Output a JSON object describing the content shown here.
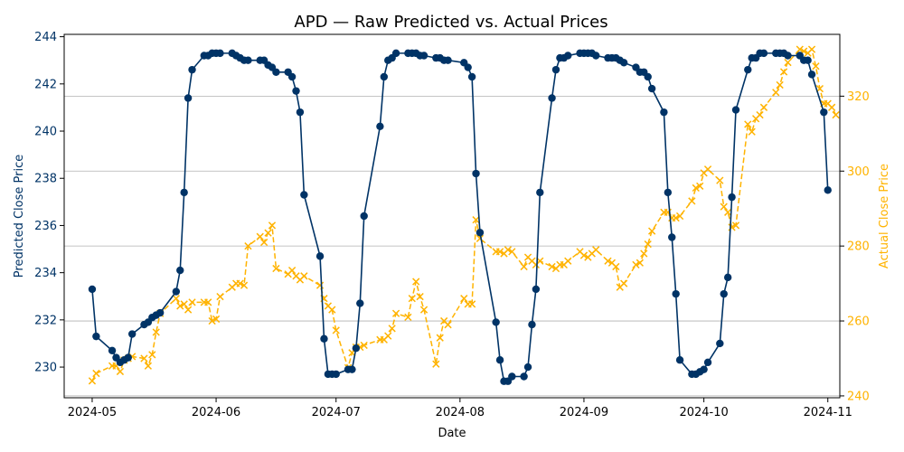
{
  "chart_data": {
    "type": "line",
    "title": "APD — Raw Predicted vs. Actual Prices",
    "xlabel": "Date",
    "ylabel_left": "Predicted Close Price",
    "ylabel_right": "Actual Close Price",
    "x_ticks": [
      "2024-05",
      "2024-06",
      "2024-07",
      "2024-08",
      "2024-09",
      "2024-10",
      "2024-11"
    ],
    "y_left_ticks": [
      "230",
      "232",
      "234",
      "236",
      "238",
      "240",
      "242",
      "244"
    ],
    "y_right_ticks": [
      "240",
      "260",
      "280",
      "300",
      "320"
    ],
    "x_range": [
      "2024-04-24",
      "2024-11-04"
    ],
    "ylim_left": [
      228.7,
      244.1
    ],
    "ylim_right": [
      239.5,
      336.5
    ],
    "grid": "horizontal (right axis)",
    "colors": {
      "predicted": "#003366",
      "actual": "#FFB300"
    },
    "series": [
      {
        "role": "predicted",
        "axis": "left",
        "marker": "circle",
        "line_style": "solid",
        "points": [
          [
            "2024-05-01",
            233.3
          ],
          [
            "2024-05-02",
            231.3
          ],
          [
            "2024-05-06",
            230.7
          ],
          [
            "2024-05-07",
            230.4
          ],
          [
            "2024-05-08",
            230.2
          ],
          [
            "2024-05-09",
            230.3
          ],
          [
            "2024-05-10",
            230.4
          ],
          [
            "2024-05-11",
            231.4
          ],
          [
            "2024-05-14",
            231.8
          ],
          [
            "2024-05-15",
            231.9
          ],
          [
            "2024-05-16",
            232.1
          ],
          [
            "2024-05-17",
            232.2
          ],
          [
            "2024-05-18",
            232.3
          ],
          [
            "2024-05-22",
            233.2
          ],
          [
            "2024-05-23",
            234.1
          ],
          [
            "2024-05-24",
            237.4
          ],
          [
            "2024-05-25",
            241.4
          ],
          [
            "2024-05-26",
            242.6
          ],
          [
            "2024-05-29",
            243.2
          ],
          [
            "2024-05-30",
            243.2
          ],
          [
            "2024-05-31",
            243.3
          ],
          [
            "2024-06-01",
            243.3
          ],
          [
            "2024-06-02",
            243.3
          ],
          [
            "2024-06-05",
            243.3
          ],
          [
            "2024-06-06",
            243.2
          ],
          [
            "2024-06-07",
            243.1
          ],
          [
            "2024-06-08",
            243.0
          ],
          [
            "2024-06-09",
            243.0
          ],
          [
            "2024-06-12",
            243.0
          ],
          [
            "2024-06-13",
            243.0
          ],
          [
            "2024-06-14",
            242.8
          ],
          [
            "2024-06-15",
            242.7
          ],
          [
            "2024-06-16",
            242.5
          ],
          [
            "2024-06-19",
            242.5
          ],
          [
            "2024-06-20",
            242.3
          ],
          [
            "2024-06-21",
            241.7
          ],
          [
            "2024-06-22",
            240.8
          ],
          [
            "2024-06-23",
            237.3
          ],
          [
            "2024-06-27",
            234.7
          ],
          [
            "2024-06-28",
            231.2
          ],
          [
            "2024-06-29",
            229.7
          ],
          [
            "2024-06-30",
            229.7
          ],
          [
            "2024-07-01",
            229.7
          ],
          [
            "2024-07-04",
            229.9
          ],
          [
            "2024-07-05",
            229.9
          ],
          [
            "2024-07-06",
            230.8
          ],
          [
            "2024-07-07",
            232.7
          ],
          [
            "2024-07-08",
            236.4
          ],
          [
            "2024-07-12",
            240.2
          ],
          [
            "2024-07-13",
            242.3
          ],
          [
            "2024-07-14",
            243.0
          ],
          [
            "2024-07-15",
            243.1
          ],
          [
            "2024-07-16",
            243.3
          ],
          [
            "2024-07-19",
            243.3
          ],
          [
            "2024-07-20",
            243.3
          ],
          [
            "2024-07-21",
            243.3
          ],
          [
            "2024-07-22",
            243.2
          ],
          [
            "2024-07-23",
            243.2
          ],
          [
            "2024-07-26",
            243.1
          ],
          [
            "2024-07-27",
            243.1
          ],
          [
            "2024-07-28",
            243.0
          ],
          [
            "2024-07-29",
            243.0
          ],
          [
            "2024-08-02",
            242.9
          ],
          [
            "2024-08-03",
            242.7
          ],
          [
            "2024-08-04",
            242.3
          ],
          [
            "2024-08-05",
            238.2
          ],
          [
            "2024-08-06",
            235.7
          ],
          [
            "2024-08-10",
            231.9
          ],
          [
            "2024-08-11",
            230.3
          ],
          [
            "2024-08-12",
            229.4
          ],
          [
            "2024-08-13",
            229.4
          ],
          [
            "2024-08-14",
            229.6
          ],
          [
            "2024-08-17",
            229.6
          ],
          [
            "2024-08-18",
            230.0
          ],
          [
            "2024-08-19",
            231.8
          ],
          [
            "2024-08-20",
            233.3
          ],
          [
            "2024-08-21",
            237.4
          ],
          [
            "2024-08-24",
            241.4
          ],
          [
            "2024-08-25",
            242.6
          ],
          [
            "2024-08-26",
            243.1
          ],
          [
            "2024-08-27",
            243.1
          ],
          [
            "2024-08-28",
            243.2
          ],
          [
            "2024-08-31",
            243.3
          ],
          [
            "2024-09-01",
            243.3
          ],
          [
            "2024-09-02",
            243.3
          ],
          [
            "2024-09-03",
            243.3
          ],
          [
            "2024-09-04",
            243.2
          ],
          [
            "2024-09-07",
            243.1
          ],
          [
            "2024-09-08",
            243.1
          ],
          [
            "2024-09-09",
            243.1
          ],
          [
            "2024-09-10",
            243.0
          ],
          [
            "2024-09-11",
            242.9
          ],
          [
            "2024-09-14",
            242.7
          ],
          [
            "2024-09-15",
            242.5
          ],
          [
            "2024-09-16",
            242.5
          ],
          [
            "2024-09-17",
            242.3
          ],
          [
            "2024-09-18",
            241.8
          ],
          [
            "2024-09-21",
            240.8
          ],
          [
            "2024-09-22",
            237.4
          ],
          [
            "2024-09-23",
            235.5
          ],
          [
            "2024-09-24",
            233.1
          ],
          [
            "2024-09-25",
            230.3
          ],
          [
            "2024-09-28",
            229.7
          ],
          [
            "2024-09-29",
            229.7
          ],
          [
            "2024-09-30",
            229.8
          ],
          [
            "2024-10-01",
            229.9
          ],
          [
            "2024-10-02",
            230.2
          ],
          [
            "2024-10-05",
            231.0
          ],
          [
            "2024-10-06",
            233.1
          ],
          [
            "2024-10-07",
            233.8
          ],
          [
            "2024-10-08",
            237.2
          ],
          [
            "2024-10-09",
            240.9
          ],
          [
            "2024-10-12",
            242.6
          ],
          [
            "2024-10-13",
            243.1
          ],
          [
            "2024-10-14",
            243.1
          ],
          [
            "2024-10-15",
            243.3
          ],
          [
            "2024-10-16",
            243.3
          ],
          [
            "2024-10-19",
            243.3
          ],
          [
            "2024-10-20",
            243.3
          ],
          [
            "2024-10-21",
            243.3
          ],
          [
            "2024-10-22",
            243.2
          ],
          [
            "2024-10-25",
            243.2
          ],
          [
            "2024-10-26",
            243.0
          ],
          [
            "2024-10-27",
            243.0
          ],
          [
            "2024-10-28",
            242.4
          ],
          [
            "2024-10-31",
            240.8
          ],
          [
            "2024-11-01",
            237.5
          ]
        ]
      },
      {
        "role": "actual",
        "axis": "right",
        "marker": "x",
        "line_style": "dashed",
        "points": [
          [
            "2024-05-01",
            244.0
          ],
          [
            "2024-05-02",
            246.0
          ],
          [
            "2024-05-06",
            248.0
          ],
          [
            "2024-05-07",
            248.0
          ],
          [
            "2024-05-08",
            246.5
          ],
          [
            "2024-05-09",
            249.5
          ],
          [
            "2024-05-10",
            250.0
          ],
          [
            "2024-05-11",
            250.5
          ],
          [
            "2024-05-14",
            250.0
          ],
          [
            "2024-05-15",
            248.0
          ],
          [
            "2024-05-16",
            251.0
          ],
          [
            "2024-05-17",
            257.0
          ],
          [
            "2024-05-18",
            262.0
          ],
          [
            "2024-05-22",
            266.0
          ],
          [
            "2024-05-23",
            264.0
          ],
          [
            "2024-05-24",
            264.5
          ],
          [
            "2024-05-25",
            263.0
          ],
          [
            "2024-05-26",
            265.0
          ],
          [
            "2024-05-29",
            265.0
          ],
          [
            "2024-05-30",
            265.0
          ],
          [
            "2024-05-31",
            260.0
          ],
          [
            "2024-06-01",
            260.5
          ],
          [
            "2024-06-02",
            266.5
          ],
          [
            "2024-06-05",
            269.0
          ],
          [
            "2024-06-06",
            270.0
          ],
          [
            "2024-06-07",
            270.0
          ],
          [
            "2024-06-08",
            269.5
          ],
          [
            "2024-06-09",
            280.0
          ],
          [
            "2024-06-12",
            282.5
          ],
          [
            "2024-06-13",
            281.0
          ],
          [
            "2024-06-14",
            283.5
          ],
          [
            "2024-06-15",
            285.5
          ],
          [
            "2024-06-16",
            274.0
          ],
          [
            "2024-06-19",
            272.5
          ],
          [
            "2024-06-20",
            273.5
          ],
          [
            "2024-06-21",
            272.0
          ],
          [
            "2024-06-22",
            271.0
          ],
          [
            "2024-06-23",
            272.0
          ],
          [
            "2024-06-27",
            269.5
          ],
          [
            "2024-06-28",
            266.0
          ],
          [
            "2024-06-29",
            264.0
          ],
          [
            "2024-06-30",
            263.0
          ],
          [
            "2024-07-01",
            257.5
          ],
          [
            "2024-07-04",
            247.5
          ],
          [
            "2024-07-05",
            251.5
          ],
          [
            "2024-07-06",
            253.0
          ],
          [
            "2024-07-07",
            253.0
          ],
          [
            "2024-07-08",
            253.5
          ],
          [
            "2024-07-12",
            255.0
          ],
          [
            "2024-07-13",
            255.0
          ],
          [
            "2024-07-14",
            256.0
          ],
          [
            "2024-07-15",
            258.0
          ],
          [
            "2024-07-16",
            262.0
          ],
          [
            "2024-07-19",
            261.0
          ],
          [
            "2024-07-20",
            266.0
          ],
          [
            "2024-07-21",
            270.5
          ],
          [
            "2024-07-22",
            266.5
          ],
          [
            "2024-07-23",
            263.0
          ],
          [
            "2024-07-26",
            248.5
          ],
          [
            "2024-07-27",
            255.5
          ],
          [
            "2024-07-28",
            260.0
          ],
          [
            "2024-07-29",
            259.0
          ],
          [
            "2024-08-02",
            266.0
          ],
          [
            "2024-08-03",
            264.5
          ],
          [
            "2024-08-04",
            264.5
          ],
          [
            "2024-08-05",
            287.0
          ],
          [
            "2024-08-06",
            282.0
          ],
          [
            "2024-08-10",
            278.5
          ],
          [
            "2024-08-11",
            278.5
          ],
          [
            "2024-08-12",
            278.0
          ],
          [
            "2024-08-13",
            279.0
          ],
          [
            "2024-08-14",
            278.5
          ],
          [
            "2024-08-17",
            274.5
          ],
          [
            "2024-08-18",
            277.0
          ],
          [
            "2024-08-19",
            276.0
          ],
          [
            "2024-08-20",
            275.0
          ],
          [
            "2024-08-21",
            276.0
          ],
          [
            "2024-08-24",
            274.5
          ],
          [
            "2024-08-25",
            274.0
          ],
          [
            "2024-08-26",
            275.0
          ],
          [
            "2024-08-27",
            275.0
          ],
          [
            "2024-08-28",
            276.0
          ],
          [
            "2024-08-31",
            278.5
          ],
          [
            "2024-09-01",
            277.5
          ],
          [
            "2024-09-02",
            277.0
          ],
          [
            "2024-09-03",
            278.0
          ],
          [
            "2024-09-04",
            279.0
          ],
          [
            "2024-09-07",
            276.0
          ],
          [
            "2024-09-08",
            275.5
          ],
          [
            "2024-09-09",
            274.5
          ],
          [
            "2024-09-10",
            269.0
          ],
          [
            "2024-09-11",
            270.0
          ],
          [
            "2024-09-14",
            275.0
          ],
          [
            "2024-09-15",
            275.5
          ],
          [
            "2024-09-16",
            278.0
          ],
          [
            "2024-09-17",
            280.5
          ],
          [
            "2024-09-18",
            284.0
          ],
          [
            "2024-09-21",
            289.0
          ],
          [
            "2024-09-22",
            289.0
          ],
          [
            "2024-09-23",
            287.5
          ],
          [
            "2024-09-24",
            287.5
          ],
          [
            "2024-09-25",
            288.0
          ],
          [
            "2024-09-28",
            292.0
          ],
          [
            "2024-09-29",
            295.5
          ],
          [
            "2024-09-30",
            296.0
          ],
          [
            "2024-10-01",
            299.5
          ],
          [
            "2024-10-02",
            300.5
          ],
          [
            "2024-10-05",
            297.5
          ],
          [
            "2024-10-06",
            290.5
          ],
          [
            "2024-10-07",
            289.0
          ],
          [
            "2024-10-08",
            285.0
          ],
          [
            "2024-10-09",
            285.5
          ],
          [
            "2024-10-12",
            312.5
          ],
          [
            "2024-10-13",
            310.5
          ],
          [
            "2024-10-14",
            314.0
          ],
          [
            "2024-10-15",
            315.0
          ],
          [
            "2024-10-16",
            317.0
          ],
          [
            "2024-10-19",
            321.0
          ],
          [
            "2024-10-20",
            323.0
          ],
          [
            "2024-10-21",
            326.5
          ],
          [
            "2024-10-22",
            329.0
          ],
          [
            "2024-10-25",
            332.5
          ],
          [
            "2024-10-26",
            332.0
          ],
          [
            "2024-10-27",
            331.5
          ],
          [
            "2024-10-28",
            332.5
          ],
          [
            "2024-10-29",
            328.0
          ],
          [
            "2024-10-30",
            322.0
          ],
          [
            "2024-10-31",
            318.0
          ],
          [
            "2024-11-01",
            318.0
          ],
          [
            "2024-11-02",
            317.0
          ],
          [
            "2024-11-03",
            315.0
          ]
        ]
      }
    ]
  }
}
